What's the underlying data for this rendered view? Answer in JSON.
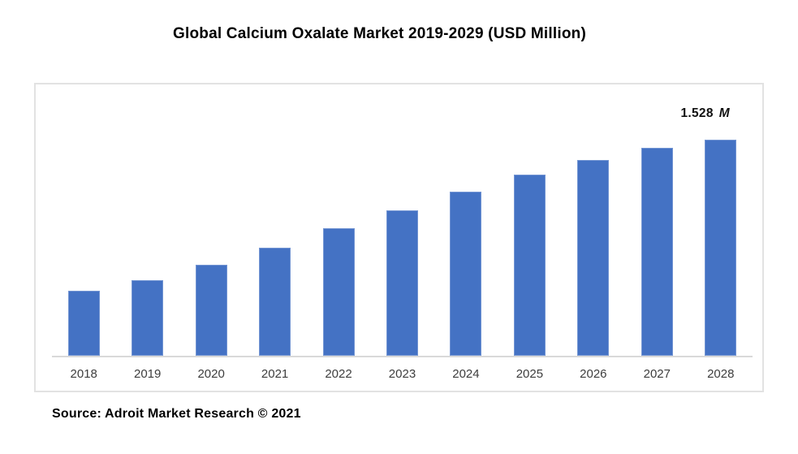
{
  "title": "Global Calcium Oxalate Market 2019-2029 (USD Million)",
  "annotation": {
    "value": "1.528",
    "suffix": "M"
  },
  "source": "Source: Adroit Market Research © 2021",
  "colors": {
    "bar": "#4472C4",
    "plot_border": "#e2e2e2",
    "axis_line": "#d9d9d9",
    "title_text": "#000000",
    "tick_text": "#3d3d3d"
  },
  "chart_data": {
    "type": "bar",
    "title": "Global Calcium Oxalate Market 2019-2029 (USD Million)",
    "categories": [
      "2018",
      "2019",
      "2020",
      "2021",
      "2022",
      "2023",
      "2024",
      "2025",
      "2026",
      "2027",
      "2028"
    ],
    "values": [
      0.46,
      0.534,
      0.642,
      0.767,
      0.903,
      1.028,
      1.164,
      1.284,
      1.386,
      1.471,
      1.528
    ],
    "value_labels": {
      "2028": "1.528 M"
    },
    "xlabel": "",
    "ylabel": "",
    "ylim": [
      0,
      1.92
    ],
    "grid": false,
    "legend": "none",
    "y_axis_visible": false,
    "annotation_text": "1.528 M",
    "source": "Source: Adroit Market Research © 2021"
  }
}
